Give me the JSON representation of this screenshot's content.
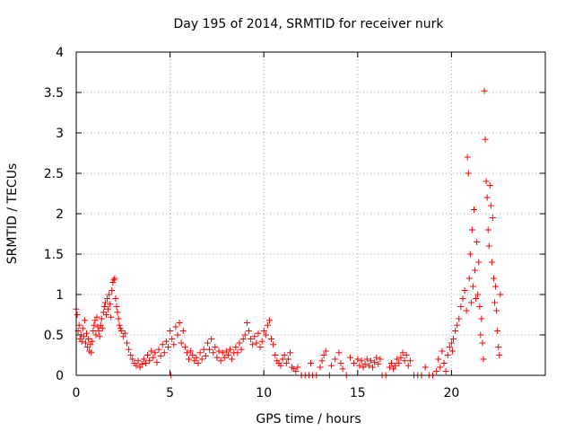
{
  "chart_data": {
    "type": "scatter",
    "title": "Day 195 of 2014, SRMTID for receiver nurk",
    "xlabel": "GPS time / hours",
    "ylabel": "SRMTID / TECUs",
    "xlim": [
      0,
      25
    ],
    "ylim": [
      0,
      4
    ],
    "xticks": [
      0,
      5,
      10,
      15,
      20
    ],
    "xtick_labels": [
      "0",
      "5",
      "10",
      "15",
      "20"
    ],
    "yticks": [
      0,
      0.5,
      1,
      1.5,
      2,
      2.5,
      3,
      3.5,
      4
    ],
    "ytick_labels": [
      "0",
      "0.5",
      "1",
      "1.5",
      "2",
      "2.5",
      "3",
      "3.5",
      "4"
    ],
    "grid": true,
    "marker": "+",
    "series": [
      {
        "name": "SRMTID",
        "color": "#ff0000",
        "points": [
          [
            0.0,
            0.82
          ],
          [
            0.05,
            0.75
          ],
          [
            0.1,
            0.55
          ],
          [
            0.15,
            0.62
          ],
          [
            0.2,
            0.45
          ],
          [
            0.25,
            0.5
          ],
          [
            0.3,
            0.42
          ],
          [
            0.35,
            0.58
          ],
          [
            0.4,
            0.48
          ],
          [
            0.45,
            0.68
          ],
          [
            0.5,
            0.4
          ],
          [
            0.55,
            0.52
          ],
          [
            0.6,
            0.35
          ],
          [
            0.65,
            0.45
          ],
          [
            0.7,
            0.3
          ],
          [
            0.75,
            0.38
          ],
          [
            0.8,
            0.28
          ],
          [
            0.85,
            0.42
          ],
          [
            0.9,
            0.55
          ],
          [
            0.95,
            0.62
          ],
          [
            1.0,
            0.68
          ],
          [
            1.05,
            0.5
          ],
          [
            1.1,
            0.72
          ],
          [
            1.15,
            0.6
          ],
          [
            1.2,
            0.55
          ],
          [
            1.25,
            0.48
          ],
          [
            1.3,
            0.62
          ],
          [
            1.35,
            0.7
          ],
          [
            1.4,
            0.58
          ],
          [
            1.45,
            0.78
          ],
          [
            1.5,
            0.85
          ],
          [
            1.55,
            0.9
          ],
          [
            1.6,
            0.75
          ],
          [
            1.65,
            0.95
          ],
          [
            1.7,
            0.82
          ],
          [
            1.75,
            1.0
          ],
          [
            1.8,
            0.88
          ],
          [
            1.85,
            0.72
          ],
          [
            1.9,
            1.05
          ],
          [
            1.95,
            1.15
          ],
          [
            2.0,
            1.18
          ],
          [
            2.05,
            1.2
          ],
          [
            2.1,
            0.95
          ],
          [
            2.15,
            0.85
          ],
          [
            2.2,
            0.78
          ],
          [
            2.25,
            0.7
          ],
          [
            2.3,
            0.62
          ],
          [
            2.35,
            0.58
          ],
          [
            2.4,
            0.55
          ],
          [
            2.5,
            0.48
          ],
          [
            2.6,
            0.52
          ],
          [
            2.7,
            0.4
          ],
          [
            2.8,
            0.32
          ],
          [
            2.9,
            0.25
          ],
          [
            3.0,
            0.2
          ],
          [
            3.1,
            0.15
          ],
          [
            3.2,
            0.12
          ],
          [
            3.3,
            0.18
          ],
          [
            3.4,
            0.1
          ],
          [
            3.5,
            0.14
          ],
          [
            3.6,
            0.2
          ],
          [
            3.7,
            0.15
          ],
          [
            3.8,
            0.25
          ],
          [
            3.9,
            0.18
          ],
          [
            4.0,
            0.3
          ],
          [
            4.1,
            0.22
          ],
          [
            4.2,
            0.28
          ],
          [
            4.3,
            0.16
          ],
          [
            4.4,
            0.32
          ],
          [
            4.5,
            0.24
          ],
          [
            4.6,
            0.38
          ],
          [
            4.7,
            0.28
          ],
          [
            4.8,
            0.42
          ],
          [
            4.9,
            0.35
          ],
          [
            5.0,
            0.55
          ],
          [
            5.05,
            0.0
          ],
          [
            5.1,
            0.45
          ],
          [
            5.2,
            0.38
          ],
          [
            5.3,
            0.6
          ],
          [
            5.4,
            0.5
          ],
          [
            5.5,
            0.65
          ],
          [
            5.6,
            0.4
          ],
          [
            5.7,
            0.55
          ],
          [
            5.8,
            0.35
          ],
          [
            5.9,
            0.28
          ],
          [
            6.0,
            0.2
          ],
          [
            6.1,
            0.3
          ],
          [
            6.2,
            0.25
          ],
          [
            6.3,
            0.18
          ],
          [
            6.4,
            0.22
          ],
          [
            6.5,
            0.15
          ],
          [
            6.6,
            0.28
          ],
          [
            6.7,
            0.2
          ],
          [
            6.8,
            0.32
          ],
          [
            6.9,
            0.24
          ],
          [
            7.0,
            0.4
          ],
          [
            7.1,
            0.32
          ],
          [
            7.2,
            0.45
          ],
          [
            7.3,
            0.28
          ],
          [
            7.4,
            0.35
          ],
          [
            7.5,
            0.22
          ],
          [
            7.6,
            0.3
          ],
          [
            7.7,
            0.18
          ],
          [
            7.8,
            0.28
          ],
          [
            7.9,
            0.22
          ],
          [
            8.0,
            0.3
          ],
          [
            8.1,
            0.25
          ],
          [
            8.2,
            0.32
          ],
          [
            8.3,
            0.2
          ],
          [
            8.4,
            0.28
          ],
          [
            8.5,
            0.35
          ],
          [
            8.6,
            0.28
          ],
          [
            8.7,
            0.4
          ],
          [
            8.8,
            0.32
          ],
          [
            8.9,
            0.45
          ],
          [
            9.0,
            0.5
          ],
          [
            9.1,
            0.65
          ],
          [
            9.2,
            0.55
          ],
          [
            9.3,
            0.45
          ],
          [
            9.4,
            0.38
          ],
          [
            9.5,
            0.48
          ],
          [
            9.6,
            0.4
          ],
          [
            9.7,
            0.52
          ],
          [
            9.8,
            0.35
          ],
          [
            9.9,
            0.42
          ],
          [
            10.0,
            0.55
          ],
          [
            10.1,
            0.5
          ],
          [
            10.2,
            0.62
          ],
          [
            10.3,
            0.68
          ],
          [
            10.4,
            0.45
          ],
          [
            10.5,
            0.38
          ],
          [
            10.6,
            0.25
          ],
          [
            10.7,
            0.18
          ],
          [
            10.8,
            0.15
          ],
          [
            10.9,
            0.12
          ],
          [
            11.0,
            0.2
          ],
          [
            11.1,
            0.25
          ],
          [
            11.2,
            0.15
          ],
          [
            11.3,
            0.2
          ],
          [
            11.4,
            0.28
          ],
          [
            11.5,
            0.1
          ],
          [
            11.6,
            0.08
          ],
          [
            11.7,
            0.05
          ],
          [
            11.8,
            0.1
          ],
          [
            12.0,
            0.0
          ],
          [
            12.2,
            0.0
          ],
          [
            12.4,
            0.0
          ],
          [
            12.5,
            0.15
          ],
          [
            12.6,
            0.0
          ],
          [
            12.8,
            0.0
          ],
          [
            13.0,
            0.1
          ],
          [
            13.1,
            0.18
          ],
          [
            13.2,
            0.25
          ],
          [
            13.3,
            0.3
          ],
          [
            13.5,
            0.0
          ],
          [
            13.6,
            0.12
          ],
          [
            13.8,
            0.2
          ],
          [
            14.0,
            0.28
          ],
          [
            14.1,
            0.15
          ],
          [
            14.2,
            0.08
          ],
          [
            14.4,
            0.0
          ],
          [
            14.6,
            0.22
          ],
          [
            14.8,
            0.15
          ],
          [
            15.0,
            0.2
          ],
          [
            15.1,
            0.12
          ],
          [
            15.2,
            0.18
          ],
          [
            15.3,
            0.1
          ],
          [
            15.4,
            0.14
          ],
          [
            15.5,
            0.2
          ],
          [
            15.6,
            0.12
          ],
          [
            15.7,
            0.18
          ],
          [
            15.8,
            0.1
          ],
          [
            15.9,
            0.16
          ],
          [
            16.0,
            0.22
          ],
          [
            16.1,
            0.14
          ],
          [
            16.2,
            0.2
          ],
          [
            16.3,
            0.0
          ],
          [
            16.5,
            0.0
          ],
          [
            16.7,
            0.1
          ],
          [
            16.8,
            0.15
          ],
          [
            16.9,
            0.08
          ],
          [
            17.0,
            0.12
          ],
          [
            17.1,
            0.2
          ],
          [
            17.2,
            0.15
          ],
          [
            17.3,
            0.22
          ],
          [
            17.4,
            0.28
          ],
          [
            17.5,
            0.18
          ],
          [
            17.6,
            0.25
          ],
          [
            17.7,
            0.12
          ],
          [
            17.8,
            0.18
          ],
          [
            18.0,
            0.0
          ],
          [
            18.2,
            0.0
          ],
          [
            18.4,
            0.0
          ],
          [
            18.6,
            0.1
          ],
          [
            18.8,
            0.0
          ],
          [
            19.0,
            0.0
          ],
          [
            19.2,
            0.05
          ],
          [
            19.3,
            0.2
          ],
          [
            19.4,
            0.1
          ],
          [
            19.5,
            0.3
          ],
          [
            19.6,
            0.15
          ],
          [
            19.7,
            0.05
          ],
          [
            19.8,
            0.25
          ],
          [
            19.9,
            0.35
          ],
          [
            20.0,
            0.4
          ],
          [
            20.05,
            0.3
          ],
          [
            20.1,
            0.45
          ],
          [
            20.2,
            0.55
          ],
          [
            20.3,
            0.62
          ],
          [
            20.4,
            0.7
          ],
          [
            20.5,
            0.85
          ],
          [
            20.6,
            0.95
          ],
          [
            20.7,
            1.05
          ],
          [
            20.8,
            0.8
          ],
          [
            20.85,
            2.7
          ],
          [
            20.9,
            2.5
          ],
          [
            20.95,
            1.2
          ],
          [
            21.0,
            1.5
          ],
          [
            21.05,
            0.9
          ],
          [
            21.1,
            1.8
          ],
          [
            21.15,
            1.1
          ],
          [
            21.2,
            2.05
          ],
          [
            21.25,
            1.3
          ],
          [
            21.3,
            0.95
          ],
          [
            21.35,
            1.65
          ],
          [
            21.4,
            1.0
          ],
          [
            21.45,
            1.4
          ],
          [
            21.5,
            0.85
          ],
          [
            21.55,
            0.5
          ],
          [
            21.6,
            0.7
          ],
          [
            21.65,
            0.4
          ],
          [
            21.7,
            0.2
          ],
          [
            21.75,
            3.52
          ],
          [
            21.8,
            2.92
          ],
          [
            21.85,
            2.4
          ],
          [
            21.9,
            2.2
          ],
          [
            21.95,
            1.8
          ],
          [
            22.0,
            1.6
          ],
          [
            22.05,
            2.35
          ],
          [
            22.1,
            2.1
          ],
          [
            22.15,
            1.4
          ],
          [
            22.2,
            1.95
          ],
          [
            22.25,
            1.2
          ],
          [
            22.3,
            0.9
          ],
          [
            22.35,
            1.1
          ],
          [
            22.4,
            0.8
          ],
          [
            22.45,
            0.55
          ],
          [
            22.5,
            0.35
          ],
          [
            22.55,
            0.25
          ],
          [
            22.6,
            1.0
          ]
        ]
      }
    ]
  }
}
